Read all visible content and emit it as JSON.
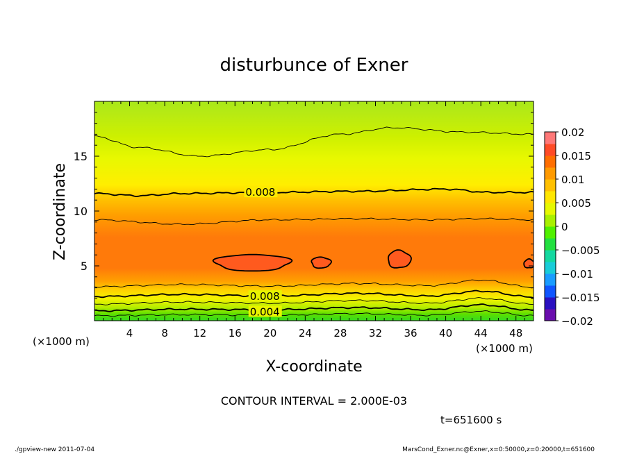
{
  "chart_data": {
    "type": "contour",
    "title": "disturbunce of Exner",
    "xlabel": "X-coordinate",
    "ylabel": "Z-coordinate",
    "x_unit_left": "(×1000 m)",
    "x_unit_right": "(×1000 m)",
    "xlim": [
      0,
      50
    ],
    "ylim": [
      0,
      20
    ],
    "xticks": [
      4,
      8,
      12,
      16,
      20,
      24,
      28,
      32,
      36,
      40,
      44,
      48
    ],
    "xtick_labels": [
      "4",
      "8",
      "12",
      "16",
      "20",
      "24",
      "28",
      "32",
      "36",
      "40",
      "44",
      "48"
    ],
    "yticks": [
      5,
      10,
      15
    ],
    "ytick_labels": [
      "5",
      "10",
      "15"
    ],
    "contour_interval_text": "CONTOUR INTERVAL = 2.000E-03",
    "time_text": "t=651600 s",
    "footer_left": "./gpview-new  2011-07-04",
    "footer_right": "MarsCond_Exner.nc@Exner,x=0:50000,z=0:20000,t=651600",
    "contour_labels": [
      {
        "text": "0.008",
        "x": 17.2,
        "z": 11.7
      },
      {
        "text": "0.008",
        "x": 17.7,
        "z": 2.2
      },
      {
        "text": "0.004",
        "x": 17.7,
        "z": 0.8
      }
    ],
    "contour_lines": [
      {
        "level": 0.002,
        "z_profile": [
          [
            0,
            0.45
          ],
          [
            10,
            0.55
          ],
          [
            20,
            0.5
          ],
          [
            30,
            0.65
          ],
          [
            38,
            0.5
          ],
          [
            44,
            0.85
          ],
          [
            50,
            0.45
          ]
        ]
      },
      {
        "level": 0.004,
        "z_profile": [
          [
            0,
            0.9
          ],
          [
            10,
            1.05
          ],
          [
            20,
            1.0
          ],
          [
            30,
            1.2
          ],
          [
            38,
            1.0
          ],
          [
            44,
            1.45
          ],
          [
            50,
            0.95
          ]
        ]
      },
      {
        "level": 0.006,
        "z_profile": [
          [
            0,
            1.5
          ],
          [
            10,
            1.7
          ],
          [
            20,
            1.6
          ],
          [
            30,
            1.85
          ],
          [
            38,
            1.6
          ],
          [
            44,
            2.05
          ],
          [
            50,
            1.5
          ]
        ]
      },
      {
        "level": 0.008,
        "z_profile": [
          [
            0,
            2.2
          ],
          [
            10,
            2.4
          ],
          [
            20,
            2.25
          ],
          [
            30,
            2.5
          ],
          [
            38,
            2.25
          ],
          [
            44,
            2.7
          ],
          [
            50,
            2.15
          ]
        ]
      },
      {
        "level": 0.01,
        "z_profile": [
          [
            0,
            3.1
          ],
          [
            10,
            3.3
          ],
          [
            20,
            3.15
          ],
          [
            30,
            3.4
          ],
          [
            38,
            3.2
          ],
          [
            44,
            3.7
          ],
          [
            50,
            3.05
          ]
        ]
      },
      {
        "level": 0.01,
        "z_profile": [
          [
            0,
            9.2
          ],
          [
            10,
            8.8
          ],
          [
            20,
            9.2
          ],
          [
            30,
            9.3
          ],
          [
            38,
            9.2
          ],
          [
            44,
            9.3
          ],
          [
            50,
            9.2
          ]
        ]
      },
      {
        "level": 0.008,
        "z_profile": [
          [
            0,
            11.6
          ],
          [
            5,
            11.4
          ],
          [
            10,
            11.6
          ],
          [
            20,
            11.7
          ],
          [
            30,
            11.8
          ],
          [
            40,
            12.0
          ],
          [
            45,
            11.7
          ],
          [
            50,
            11.7
          ]
        ]
      },
      {
        "level": 0.006,
        "z_profile": [
          [
            0,
            16.8
          ],
          [
            5,
            15.8
          ],
          [
            12,
            15.0
          ],
          [
            20,
            15.6
          ],
          [
            28,
            17.0
          ],
          [
            34,
            17.6
          ],
          [
            42,
            17.2
          ],
          [
            50,
            17.0
          ]
        ]
      }
    ],
    "closed_contours": [
      {
        "level": 0.012,
        "cx": 18.0,
        "cz": 5.3,
        "rx": 4.3,
        "rz": 0.75
      },
      {
        "level": 0.012,
        "cx": 25.8,
        "cz": 5.3,
        "rx": 1.1,
        "rz": 0.5
      },
      {
        "level": 0.012,
        "cx": 34.7,
        "cz": 5.6,
        "rx": 1.3,
        "rz": 0.8
      },
      {
        "level": 0.012,
        "cx": 49.5,
        "cz": 5.2,
        "rx": 0.6,
        "rz": 0.4
      }
    ],
    "colorbar": {
      "levels": [
        -0.02,
        -0.015,
        -0.01,
        -0.005,
        0,
        0.005,
        0.01,
        0.015,
        0.02
      ],
      "labels": [
        "0.02",
        "0.015",
        "0.01",
        "0.005",
        "0",
        "−0.005",
        "−0.01",
        "−0.015",
        "−0.02"
      ],
      "colors": [
        "#6a0dad",
        "#2a10c0",
        "#1055ff",
        "#1a9cff",
        "#18ccd8",
        "#14d8a0",
        "#22e040",
        "#50f000",
        "#a8f000",
        "#e6f800",
        "#ffe600",
        "#ffc000",
        "#ff9a00",
        "#ff6e00",
        "#ff4b26",
        "#ff7878"
      ]
    }
  }
}
